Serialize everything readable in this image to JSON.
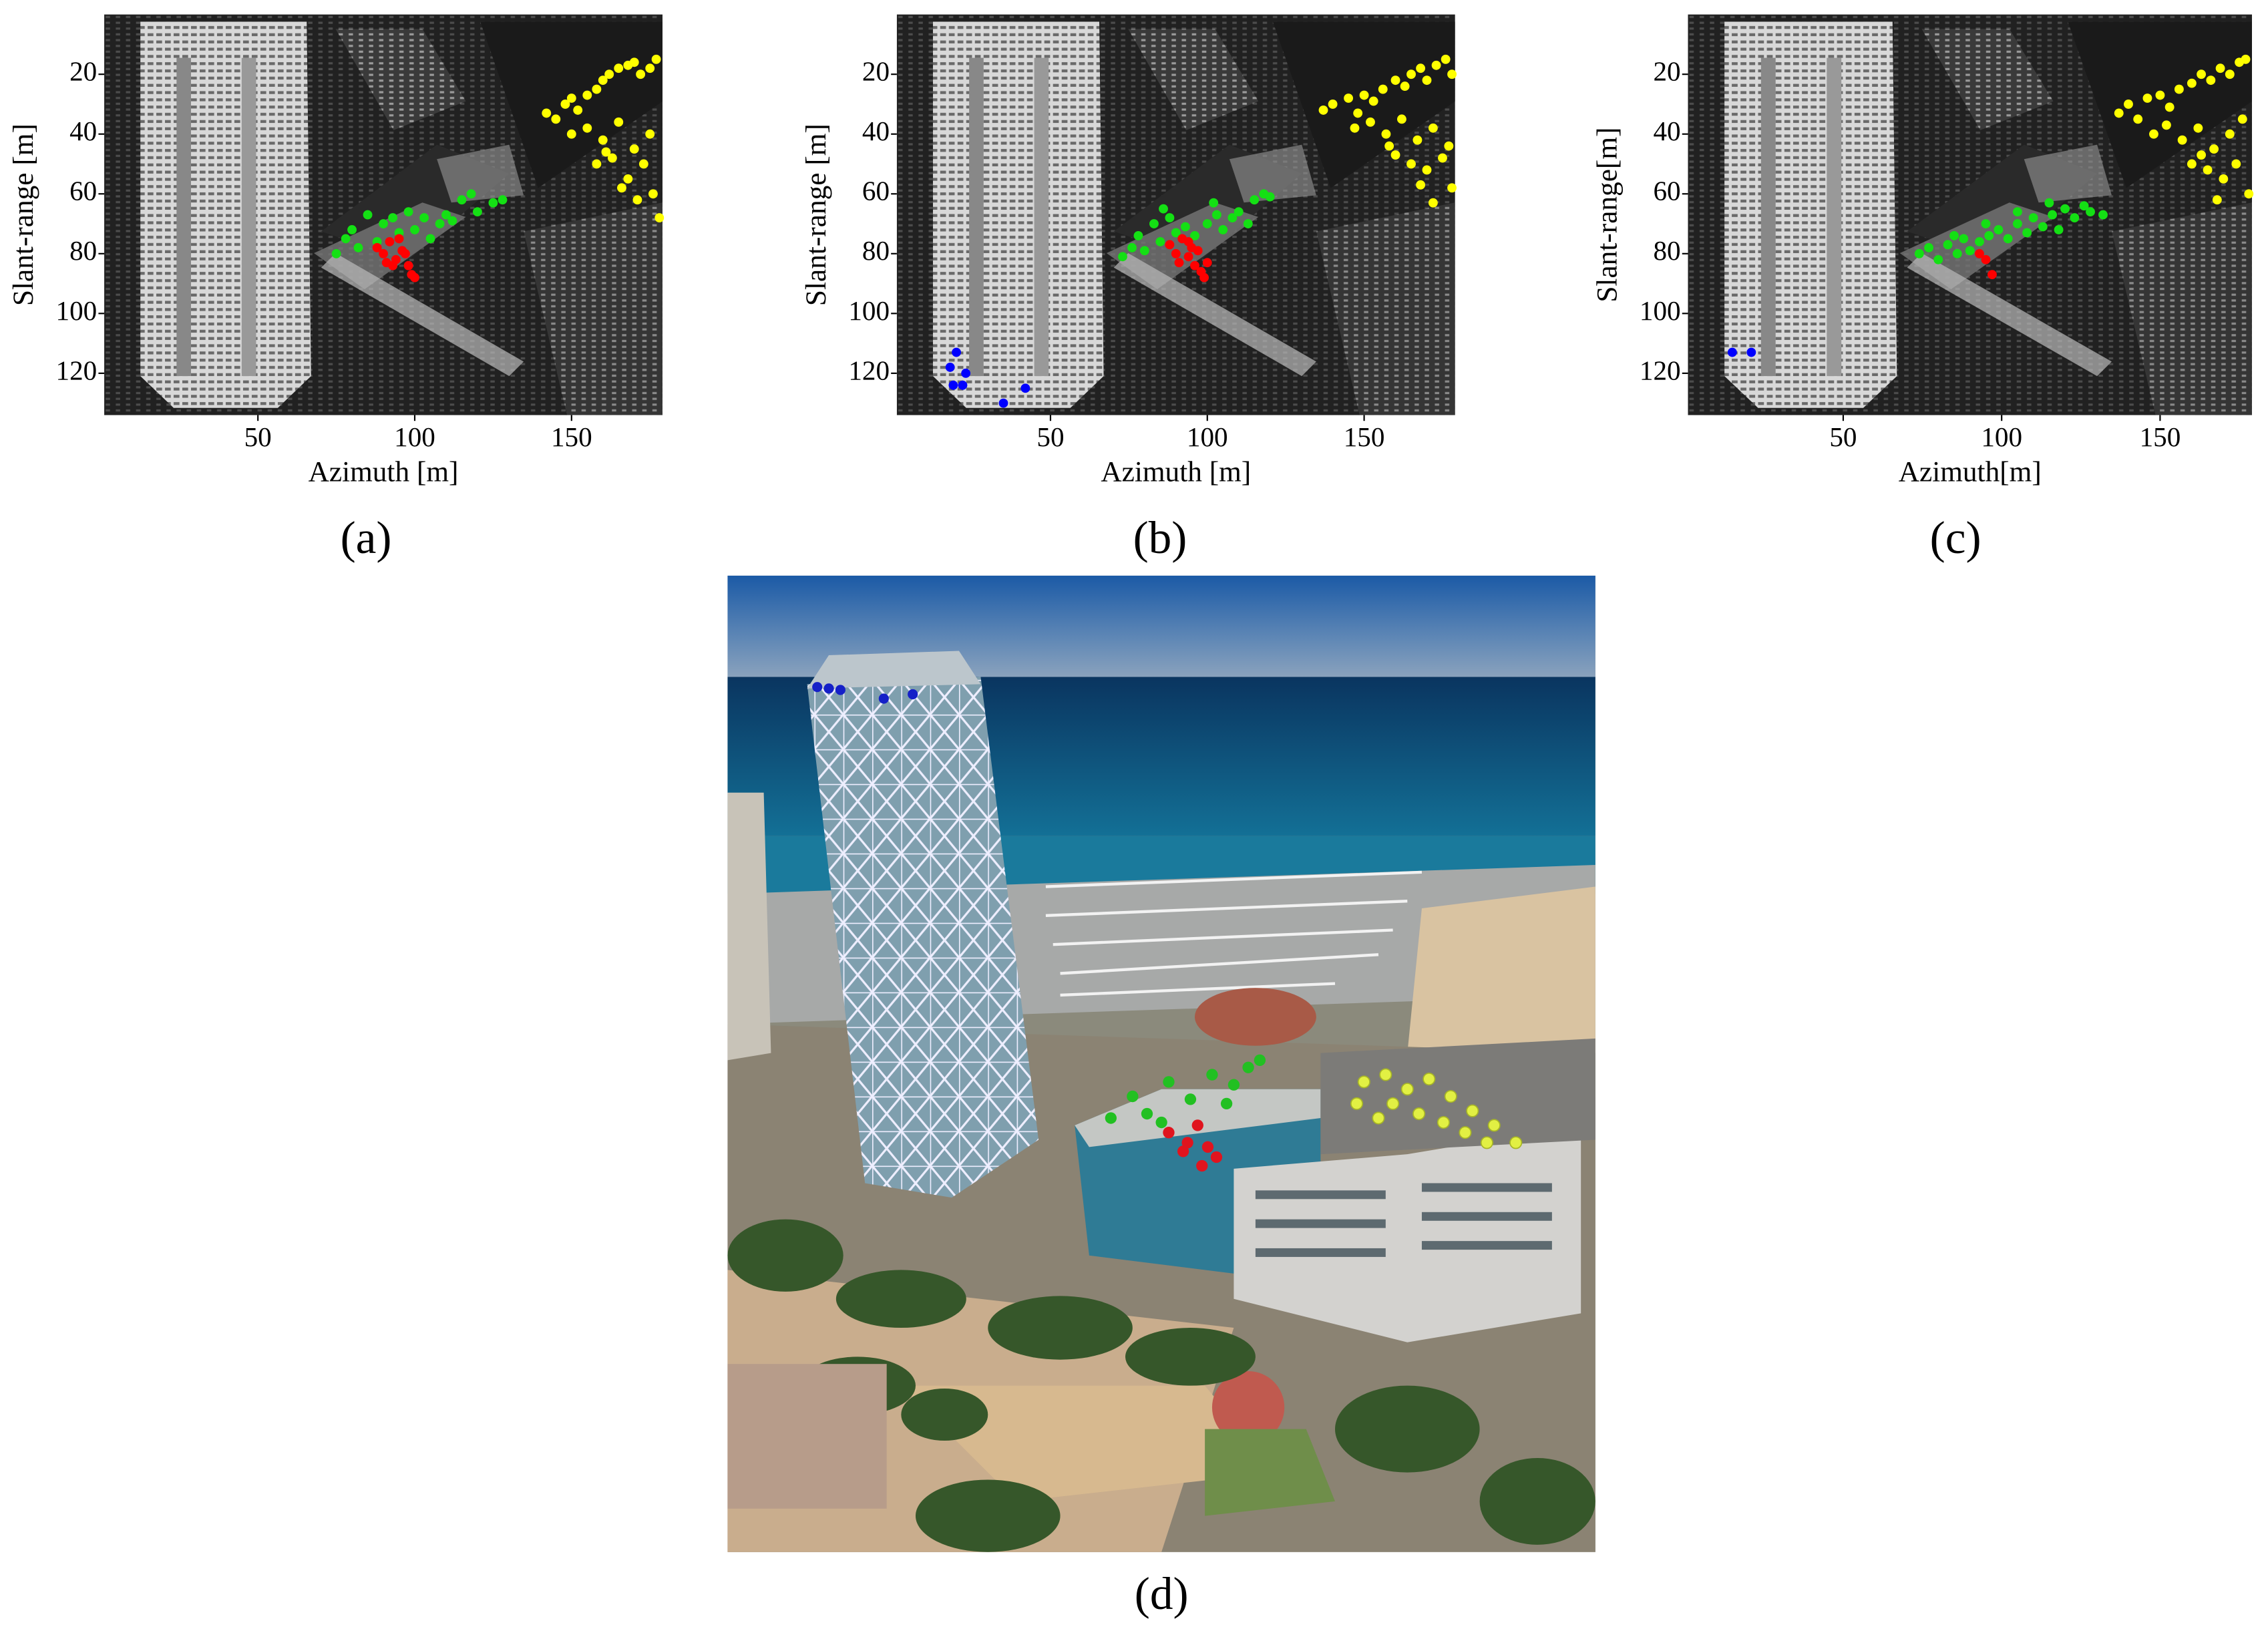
{
  "chart_data": [
    {
      "type": "scatter",
      "panel_label": "(a)",
      "x_label": "Azimuth [m]",
      "y_label": "Slant-range [m]",
      "xlim": [
        1,
        179
      ],
      "ylim": [
        134,
        0
      ],
      "xticks": [
        50,
        100,
        150
      ],
      "yticks": [
        20,
        40,
        60,
        80,
        100,
        120
      ],
      "series": [
        {
          "color": "#ffff00",
          "x": [
            142,
            145,
            148,
            150,
            152,
            155,
            158,
            160,
            162,
            165,
            168,
            170,
            172,
            175,
            177,
            150,
            155,
            160,
            165,
            170,
            175,
            158,
            163,
            168,
            173,
            176,
            178,
            171,
            166,
            161
          ],
          "y": [
            33,
            35,
            30,
            28,
            32,
            27,
            25,
            22,
            20,
            18,
            17,
            16,
            20,
            18,
            15,
            40,
            38,
            42,
            36,
            45,
            40,
            50,
            48,
            55,
            50,
            60,
            68,
            62,
            58,
            46
          ]
        },
        {
          "color": "#14e014",
          "x": [
            75,
            78,
            80,
            82,
            85,
            88,
            90,
            95,
            100,
            103,
            105,
            108,
            110,
            112,
            115,
            118,
            120,
            125,
            128,
            98,
            93
          ],
          "y": [
            80,
            75,
            72,
            78,
            67,
            76,
            70,
            73,
            72,
            68,
            75,
            70,
            67,
            69,
            62,
            60,
            66,
            63,
            62,
            66,
            68
          ]
        },
        {
          "color": "#ff0000",
          "x": [
            88,
            90,
            92,
            94,
            96,
            98,
            99,
            100,
            93,
            95,
            97,
            91
          ],
          "y": [
            78,
            80,
            76,
            82,
            79,
            84,
            87,
            88,
            84,
            75,
            80,
            83
          ]
        }
      ]
    },
    {
      "type": "scatter",
      "panel_label": "(b)",
      "x_label": "Azimuth [m]",
      "y_label": "Slant-range [m]",
      "xlim": [
        1,
        179
      ],
      "ylim": [
        134,
        0
      ],
      "xticks": [
        50,
        100,
        150
      ],
      "yticks": [
        20,
        40,
        60,
        80,
        100,
        120
      ],
      "series": [
        {
          "color": "#ffff00",
          "x": [
            137,
            140,
            145,
            148,
            150,
            153,
            156,
            160,
            163,
            165,
            168,
            170,
            173,
            176,
            178,
            147,
            152,
            157,
            162,
            167,
            172,
            177,
            160,
            165,
            170,
            175,
            178,
            172,
            168,
            158
          ],
          "y": [
            32,
            30,
            28,
            33,
            27,
            29,
            25,
            22,
            24,
            20,
            18,
            22,
            17,
            15,
            20,
            38,
            36,
            40,
            35,
            42,
            38,
            44,
            47,
            50,
            52,
            48,
            58,
            63,
            57,
            44
          ]
        },
        {
          "color": "#14e014",
          "x": [
            73,
            76,
            78,
            80,
            83,
            85,
            88,
            90,
            93,
            96,
            100,
            103,
            105,
            108,
            110,
            113,
            115,
            118,
            120,
            86,
            102
          ],
          "y": [
            81,
            78,
            74,
            79,
            70,
            76,
            68,
            73,
            71,
            74,
            70,
            67,
            72,
            68,
            66,
            70,
            62,
            60,
            61,
            65,
            63
          ]
        },
        {
          "color": "#ff0000",
          "x": [
            88,
            90,
            92,
            94,
            95,
            96,
            98,
            99,
            100,
            91,
            94,
            97
          ],
          "y": [
            77,
            80,
            75,
            81,
            78,
            84,
            86,
            88,
            83,
            83,
            76,
            79
          ]
        },
        {
          "color": "#0000ff",
          "x": [
            20,
            23,
            18,
            22,
            35,
            42,
            19
          ],
          "y": [
            113,
            120,
            118,
            124,
            130,
            125,
            124
          ]
        }
      ]
    },
    {
      "type": "scatter",
      "panel_label": "(c)",
      "x_label": "Azimuth[m]",
      "y_label": "Slant-range[m]",
      "xlim": [
        1,
        179
      ],
      "ylim": [
        134,
        0
      ],
      "xticks": [
        50,
        100,
        150
      ],
      "yticks": [
        20,
        40,
        60,
        80,
        100,
        120
      ],
      "series": [
        {
          "color": "#ffff00",
          "x": [
            137,
            140,
            143,
            146,
            150,
            153,
            156,
            160,
            163,
            166,
            169,
            172,
            175,
            177,
            148,
            152,
            157,
            162,
            167,
            172,
            176,
            160,
            165,
            170,
            174,
            178,
            168,
            163
          ],
          "y": [
            33,
            30,
            35,
            28,
            27,
            31,
            25,
            23,
            20,
            22,
            18,
            20,
            16,
            15,
            40,
            37,
            42,
            38,
            45,
            40,
            35,
            50,
            52,
            55,
            50,
            60,
            62,
            47
          ]
        },
        {
          "color": "#14e014",
          "x": [
            74,
            77,
            80,
            83,
            86,
            88,
            90,
            93,
            96,
            99,
            102,
            105,
            108,
            110,
            113,
            116,
            118,
            120,
            123,
            126,
            128,
            132,
            85,
            95,
            105,
            115
          ],
          "y": [
            80,
            78,
            82,
            77,
            80,
            75,
            79,
            76,
            74,
            72,
            75,
            70,
            73,
            68,
            71,
            67,
            72,
            65,
            68,
            64,
            66,
            67,
            74,
            70,
            66,
            63
          ]
        },
        {
          "color": "#ff0000",
          "x": [
            93,
            95,
            97
          ],
          "y": [
            80,
            82,
            87
          ]
        },
        {
          "color": "#0000ff",
          "x": [
            15,
            21
          ],
          "y": [
            113,
            113
          ]
        }
      ]
    }
  ],
  "panel_d": {
    "label": "(d)"
  }
}
